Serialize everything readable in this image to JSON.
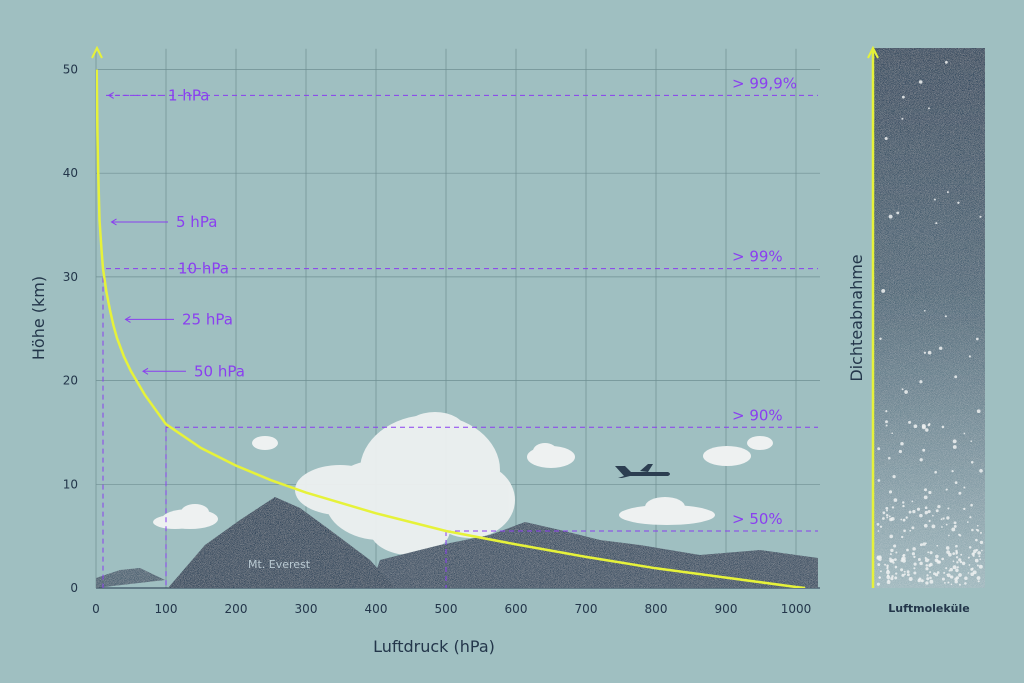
{
  "chart_data": {
    "type": "line",
    "xlabel": "Luftdruck (hPa)",
    "ylabel": "Höhe (km)",
    "xlim": [
      0,
      1030
    ],
    "ylim": [
      0,
      52
    ],
    "x_ticks": [
      0,
      100,
      200,
      300,
      400,
      500,
      600,
      700,
      800,
      900,
      1000
    ],
    "y_ticks": [
      0,
      10,
      20,
      30,
      40,
      50
    ],
    "grid": true,
    "series": [
      {
        "x": [
          1,
          2,
          3,
          5,
          8,
          10,
          15,
          20,
          25,
          30,
          40,
          50,
          70,
          100,
          150,
          200,
          250,
          300,
          400,
          500,
          600,
          700,
          800,
          900,
          1000,
          1013
        ],
        "y": [
          50,
          44,
          40.5,
          35.5,
          32.5,
          30.8,
          28.5,
          26.8,
          25.3,
          24.1,
          22.3,
          20.9,
          18.6,
          15.8,
          13.5,
          11.8,
          10.4,
          9.2,
          7.2,
          5.5,
          4.2,
          3.0,
          1.9,
          1.0,
          0.1,
          0
        ]
      }
    ],
    "pressure_annotations": [
      {
        "label": "1 hPa",
        "x": 1,
        "y": 47.5
      },
      {
        "label": "5 hPa",
        "x": 5,
        "y": 35.3
      },
      {
        "label": "10 hPa",
        "x": 10,
        "y": 30.8
      },
      {
        "label": "25 hPa",
        "x": 25,
        "y": 25.9
      },
      {
        "label": "50 hPa",
        "x": 50,
        "y": 20.9
      }
    ],
    "percent_lines": [
      {
        "label": "> 99,9%",
        "y": 47.5
      },
      {
        "label": "> 99%",
        "y": 30.8
      },
      {
        "label": "> 90%",
        "y": 15.5,
        "x": 100
      },
      {
        "label": "> 50%",
        "y": 5.5,
        "x": 500
      }
    ],
    "annotation_mountain": "Mt. Everest"
  },
  "density_panel": {
    "label": "Dichteabnahme",
    "caption": "Luftmoleküle"
  },
  "colors": {
    "background": "#9fbfc1",
    "curve": "#e6f23a",
    "annotation": "#8a3ff0",
    "mountain": "#33475b",
    "cloud": "#eef1f1",
    "grid": "#6f8f92"
  }
}
